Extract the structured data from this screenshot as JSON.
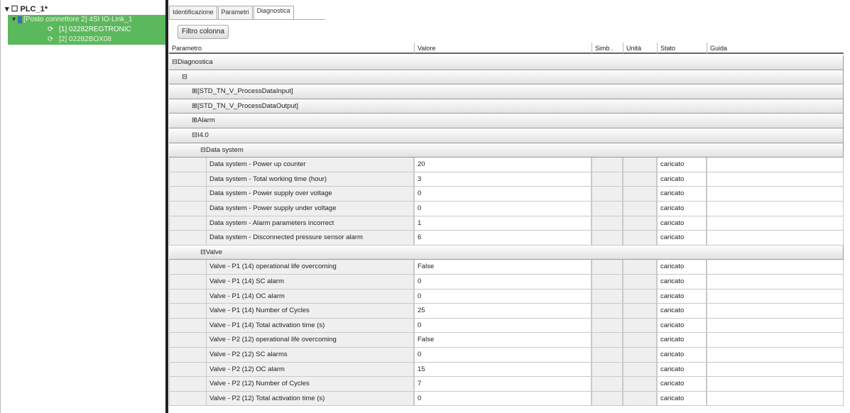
{
  "tree": {
    "root": "PLC_1*",
    "slot": "[Posto connettore 2] 4SI IO-Link_1",
    "devices": [
      "[1] 02282REGTRONIC",
      "[2] 02282BOX08"
    ]
  },
  "tabs": [
    "Identificazione",
    "Parametri",
    "Diagnostica"
  ],
  "active_tab": "Diagnostica",
  "filter_button": "Filtro colonna",
  "columns": [
    "Parametro",
    "Valore",
    "Simb .",
    "Unità",
    "Stato",
    "Guida"
  ],
  "groups": [
    {
      "label": "Diagnostica",
      "sign": "⊟",
      "level": 0
    },
    {
      "label": "",
      "sign": "⊟",
      "level": 1
    },
    {
      "label": "[STD_TN_V_ProcessDataInput]",
      "sign": "⊞",
      "level": 2
    },
    {
      "label": "[STD_TN_V_ProcessDataOutput]",
      "sign": "⊞",
      "level": 2
    },
    {
      "label": "Alarm",
      "sign": "⊞",
      "level": 2
    },
    {
      "label": "I4.0",
      "sign": "⊟",
      "level": 2
    },
    {
      "label": "Data system",
      "sign": "⊟",
      "level": 3
    }
  ],
  "data_system": [
    {
      "param": "Data system - Power up counter",
      "value": "20",
      "state": "caricato"
    },
    {
      "param": "Data system - Total working time (hour)",
      "value": "3",
      "state": "caricato"
    },
    {
      "param": "Data system - Power supply over voltage",
      "value": "0",
      "state": "caricato"
    },
    {
      "param": "Data system - Power supply under voltage",
      "value": "0",
      "state": "caricato"
    },
    {
      "param": "Data system - Alarm parameters incorrect",
      "value": "1",
      "state": "caricato"
    },
    {
      "param": "Data system - Disconnected pressure sensor alarm",
      "value": "6",
      "state": "caricato"
    }
  ],
  "valve_group": {
    "label": "Valve",
    "sign": "⊟"
  },
  "valve": [
    {
      "param": "Valve - P1 (14) operational life overcoming",
      "value": "False",
      "state": "caricato"
    },
    {
      "param": "Valve - P1 (14) SC alarm",
      "value": "0",
      "state": "caricato"
    },
    {
      "param": "Valve - P1 (14) OC alarm",
      "value": "0",
      "state": "caricato"
    },
    {
      "param": "Valve - P1 (14) Number of Cycles",
      "value": "25",
      "state": "caricato"
    },
    {
      "param": "Valve - P1 (14) Total activation time (s)",
      "value": "0",
      "state": "caricato"
    },
    {
      "param": "Valve - P2 (12) operational life overcoming",
      "value": "False",
      "state": "caricato"
    },
    {
      "param": "Valve - P2 (12) SC alarms",
      "value": "0",
      "state": "caricato"
    },
    {
      "param": "Valve - P2 (12) OC alarm",
      "value": "15",
      "state": "caricato"
    },
    {
      "param": "Valve - P2 (12) Number of Cycles",
      "value": "7",
      "state": "caricato"
    },
    {
      "param": "Valve - P2 (12) Total activation time (s)",
      "value": "0",
      "state": "caricato"
    }
  ]
}
